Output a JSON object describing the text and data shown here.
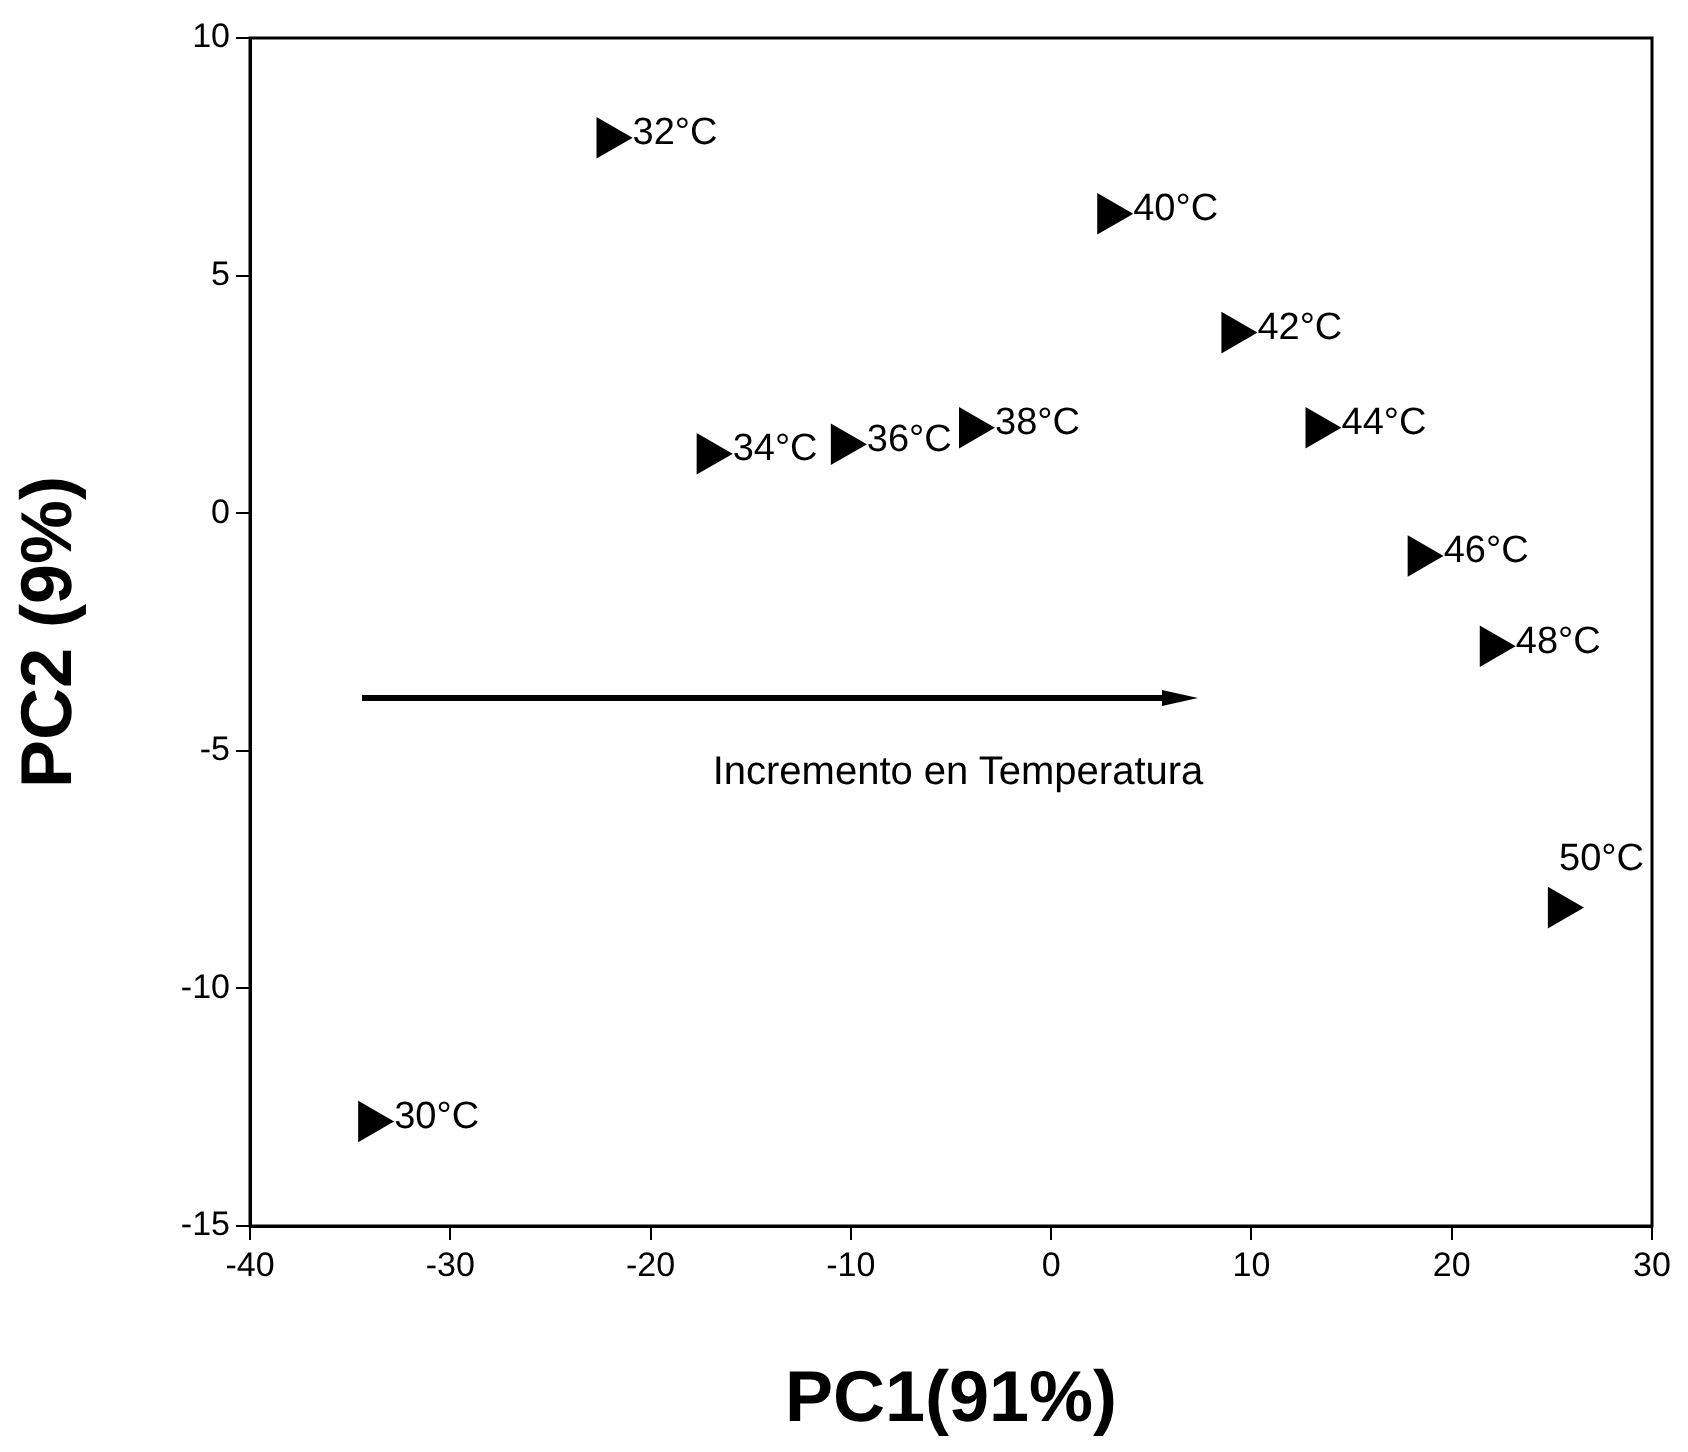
{
  "chart_data": {
    "type": "scatter",
    "xlabel": "PC1(91%)",
    "ylabel": "PC2 (9%)",
    "x": [
      -34.0,
      -22.1,
      -17.1,
      -10.4,
      -4.0,
      2.9,
      9.1,
      13.3,
      18.4,
      22.0,
      25.4
    ],
    "values": [
      -12.8,
      7.9,
      1.25,
      1.45,
      1.8,
      6.3,
      3.8,
      1.8,
      -0.9,
      -2.8,
      -8.3
    ],
    "color": "#000000",
    "marker": "triangle",
    "xlim": [
      -40,
      30
    ],
    "xticks": [
      -40,
      -30,
      -20,
      -10,
      0,
      10,
      20,
      30
    ],
    "ylim": [
      -15,
      10
    ],
    "yticks": [
      -15,
      -10,
      -5,
      0,
      5,
      10
    ],
    "grid": false,
    "legend": false,
    "annotations": [
      {
        "text": "30°C",
        "x": -34.0,
        "y": -12.8
      },
      {
        "text": "32°C",
        "x": -22.1,
        "y": 7.9
      },
      {
        "text": "34°C",
        "x": -17.1,
        "y": 1.25
      },
      {
        "text": "36°C",
        "x": -10.4,
        "y": 1.45
      },
      {
        "text": "38°C",
        "x": -4.0,
        "y": 1.8
      },
      {
        "text": "40°C",
        "x": 2.9,
        "y": 6.3
      },
      {
        "text": "42°C",
        "x": 9.1,
        "y": 3.8
      },
      {
        "text": "44°C",
        "x": 13.3,
        "y": 1.8
      },
      {
        "text": "46°C",
        "x": 18.4,
        "y": -0.9
      },
      {
        "text": "48°C",
        "x": 22.0,
        "y": -2.8
      },
      {
        "text": "50°C",
        "x": 25.4,
        "y": -8.3
      },
      "Incremento en Temperatura"
    ]
  }
}
